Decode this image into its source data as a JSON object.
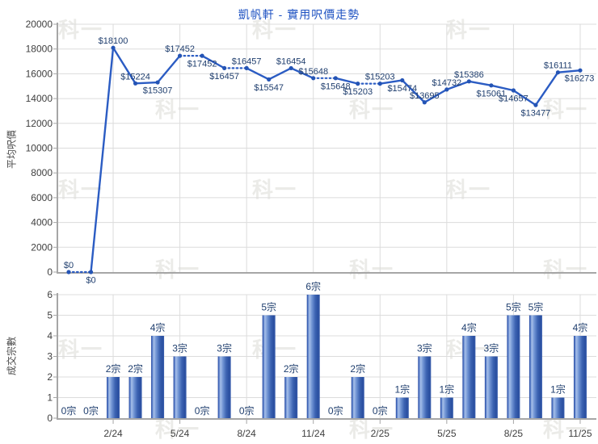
{
  "title": "凱帆軒 - 實用呎價走勢",
  "watermark": "科一",
  "colors": {
    "title": "#1e52c2",
    "line": "#2b5cc3",
    "point": "#2454b5",
    "data_label": "#1f3e6e",
    "axis_line": "#a6a6a6",
    "grid_line": "#dcdcdc",
    "tick_label": "#3f3f3f",
    "axis_title": "#4a4a4a",
    "watermark": "#ebebe8",
    "bar_gradient": [
      [
        "0%",
        "#1f419a"
      ],
      [
        "7%",
        "#4a70c0"
      ],
      [
        "20%",
        "#a6bfe9"
      ],
      [
        "40%",
        "#6f93d3"
      ],
      [
        "65%",
        "#3c63b2"
      ],
      [
        "88%",
        "#2a4fa0"
      ],
      [
        "100%",
        "#3a5fae"
      ]
    ]
  },
  "chart_data": [
    {
      "type": "line",
      "title": "凱帆軒 - 實用呎價走勢",
      "ylabel": "平均呎價",
      "ylim": [
        0,
        20000
      ],
      "ytick_step": 2000,
      "currency_prefix": "$",
      "grid": true,
      "x_tick_labels": [
        {
          "index": 2,
          "label": "2/24"
        },
        {
          "index": 5,
          "label": "5/24"
        },
        {
          "index": 8,
          "label": "8/24"
        },
        {
          "index": 11,
          "label": "11/24"
        },
        {
          "index": 14,
          "label": "2/25"
        },
        {
          "index": 17,
          "label": "5/25"
        },
        {
          "index": 20,
          "label": "8/25"
        },
        {
          "index": 23,
          "label": "11/25"
        }
      ],
      "values": [
        0,
        0,
        18100,
        15224,
        15307,
        17452,
        17452,
        16457,
        16457,
        15547,
        16454,
        15648,
        15648,
        15203,
        15203,
        15474,
        13695,
        14732,
        15386,
        15061,
        14657,
        13477,
        16111,
        16273
      ],
      "label_side": [
        "above",
        "below",
        "above",
        "above",
        "below",
        "above",
        "below",
        "below",
        "above",
        "below",
        "above",
        "above",
        "below",
        "below",
        "above",
        "below",
        "above",
        "above",
        "above",
        "below",
        "below",
        "below",
        "above",
        "below"
      ],
      "dotted_segment_when_month_has_no_sales": true
    },
    {
      "type": "bar",
      "ylabel": "成交宗數",
      "ylim": [
        0,
        6
      ],
      "ytick_step": 1,
      "unit_suffix": "宗",
      "grid": true,
      "x_tick_labels": [
        {
          "index": 2,
          "label": "2/24"
        },
        {
          "index": 5,
          "label": "5/24"
        },
        {
          "index": 8,
          "label": "8/24"
        },
        {
          "index": 11,
          "label": "11/24"
        },
        {
          "index": 14,
          "label": "2/25"
        },
        {
          "index": 17,
          "label": "5/25"
        },
        {
          "index": 20,
          "label": "8/25"
        },
        {
          "index": 23,
          "label": "11/25"
        }
      ],
      "values": [
        0,
        0,
        2,
        2,
        4,
        3,
        0,
        3,
        0,
        5,
        2,
        6,
        0,
        2,
        0,
        1,
        3,
        1,
        4,
        3,
        5,
        5,
        1,
        4
      ]
    }
  ]
}
